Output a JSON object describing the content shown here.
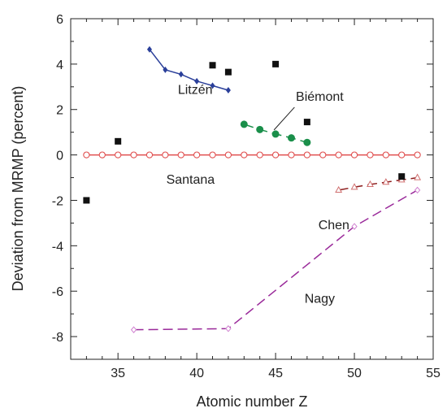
{
  "chart_data": {
    "type": "scatter",
    "title": "",
    "xlabel": "Atomic number Z",
    "ylabel": "Deviation from MRMP (percent)",
    "xlim": [
      32,
      55
    ],
    "ylim": [
      -9,
      6
    ],
    "xticks": [
      35,
      40,
      45,
      50,
      55
    ],
    "yticks": [
      -8,
      -6,
      -4,
      -2,
      0,
      2,
      4,
      6
    ],
    "grid": false,
    "legend": "none",
    "series": [
      {
        "name": "Santana",
        "color": "#e05050",
        "marker": "open-circle",
        "line": "solid",
        "x": [
          33,
          34,
          35,
          36,
          37,
          38,
          39,
          40,
          41,
          42,
          43,
          44,
          45,
          46,
          47,
          48,
          49,
          50,
          51,
          52,
          53,
          54
        ],
        "y": [
          0,
          0,
          0,
          0,
          0,
          0,
          0,
          0,
          0,
          0,
          0,
          0,
          0,
          0,
          0,
          0,
          0,
          0,
          0,
          0,
          0,
          0
        ]
      },
      {
        "name": "Litzén",
        "color": "#2a3f9a",
        "marker": "filled-diamond",
        "line": "solid",
        "x": [
          37,
          38,
          39,
          40,
          41,
          42
        ],
        "y": [
          4.65,
          3.75,
          3.55,
          3.25,
          3.05,
          2.85
        ]
      },
      {
        "name": "Biémont",
        "color": "#1a8f4a",
        "marker": "filled-circle",
        "line": "dashed",
        "x": [
          43,
          44,
          45,
          46,
          47
        ],
        "y": [
          1.35,
          1.12,
          0.92,
          0.75,
          0.55
        ]
      },
      {
        "name": "Chen",
        "color": "#8b1a1a",
        "marker": "open-triangle",
        "line": "dashed",
        "x": [
          49,
          50,
          51,
          52,
          53,
          54
        ],
        "y": [
          -1.55,
          -1.42,
          -1.3,
          -1.2,
          -1.1,
          -1.0
        ]
      },
      {
        "name": "Nagy",
        "color": "#9a2a9a",
        "marker": "open-diamond",
        "line": "dashed",
        "x": [
          36,
          42,
          50,
          54
        ],
        "y": [
          -7.7,
          -7.65,
          -3.15,
          -1.55
        ]
      },
      {
        "name": "",
        "color": "#111111",
        "marker": "filled-square",
        "line": "none",
        "x": [
          33,
          35,
          41,
          42,
          45,
          47,
          53
        ],
        "y": [
          -2.0,
          0.6,
          3.95,
          3.65,
          4.0,
          1.45,
          -0.95
        ]
      }
    ],
    "annotations": [
      {
        "text": "Litzén",
        "x": 39.9,
        "y": 2.9
      },
      {
        "text": "Biémont",
        "x": 47.8,
        "y": 2.6
      },
      {
        "text": "Santana",
        "x": 39.6,
        "y": -1.05
      },
      {
        "text": "Chen",
        "x": 48.7,
        "y": -3.05
      },
      {
        "text": "Nagy",
        "x": 47.8,
        "y": -6.3
      }
    ],
    "leader_line": {
      "from": [
        46.2,
        2.1
      ],
      "to": [
        44.9,
        1.1
      ]
    }
  }
}
